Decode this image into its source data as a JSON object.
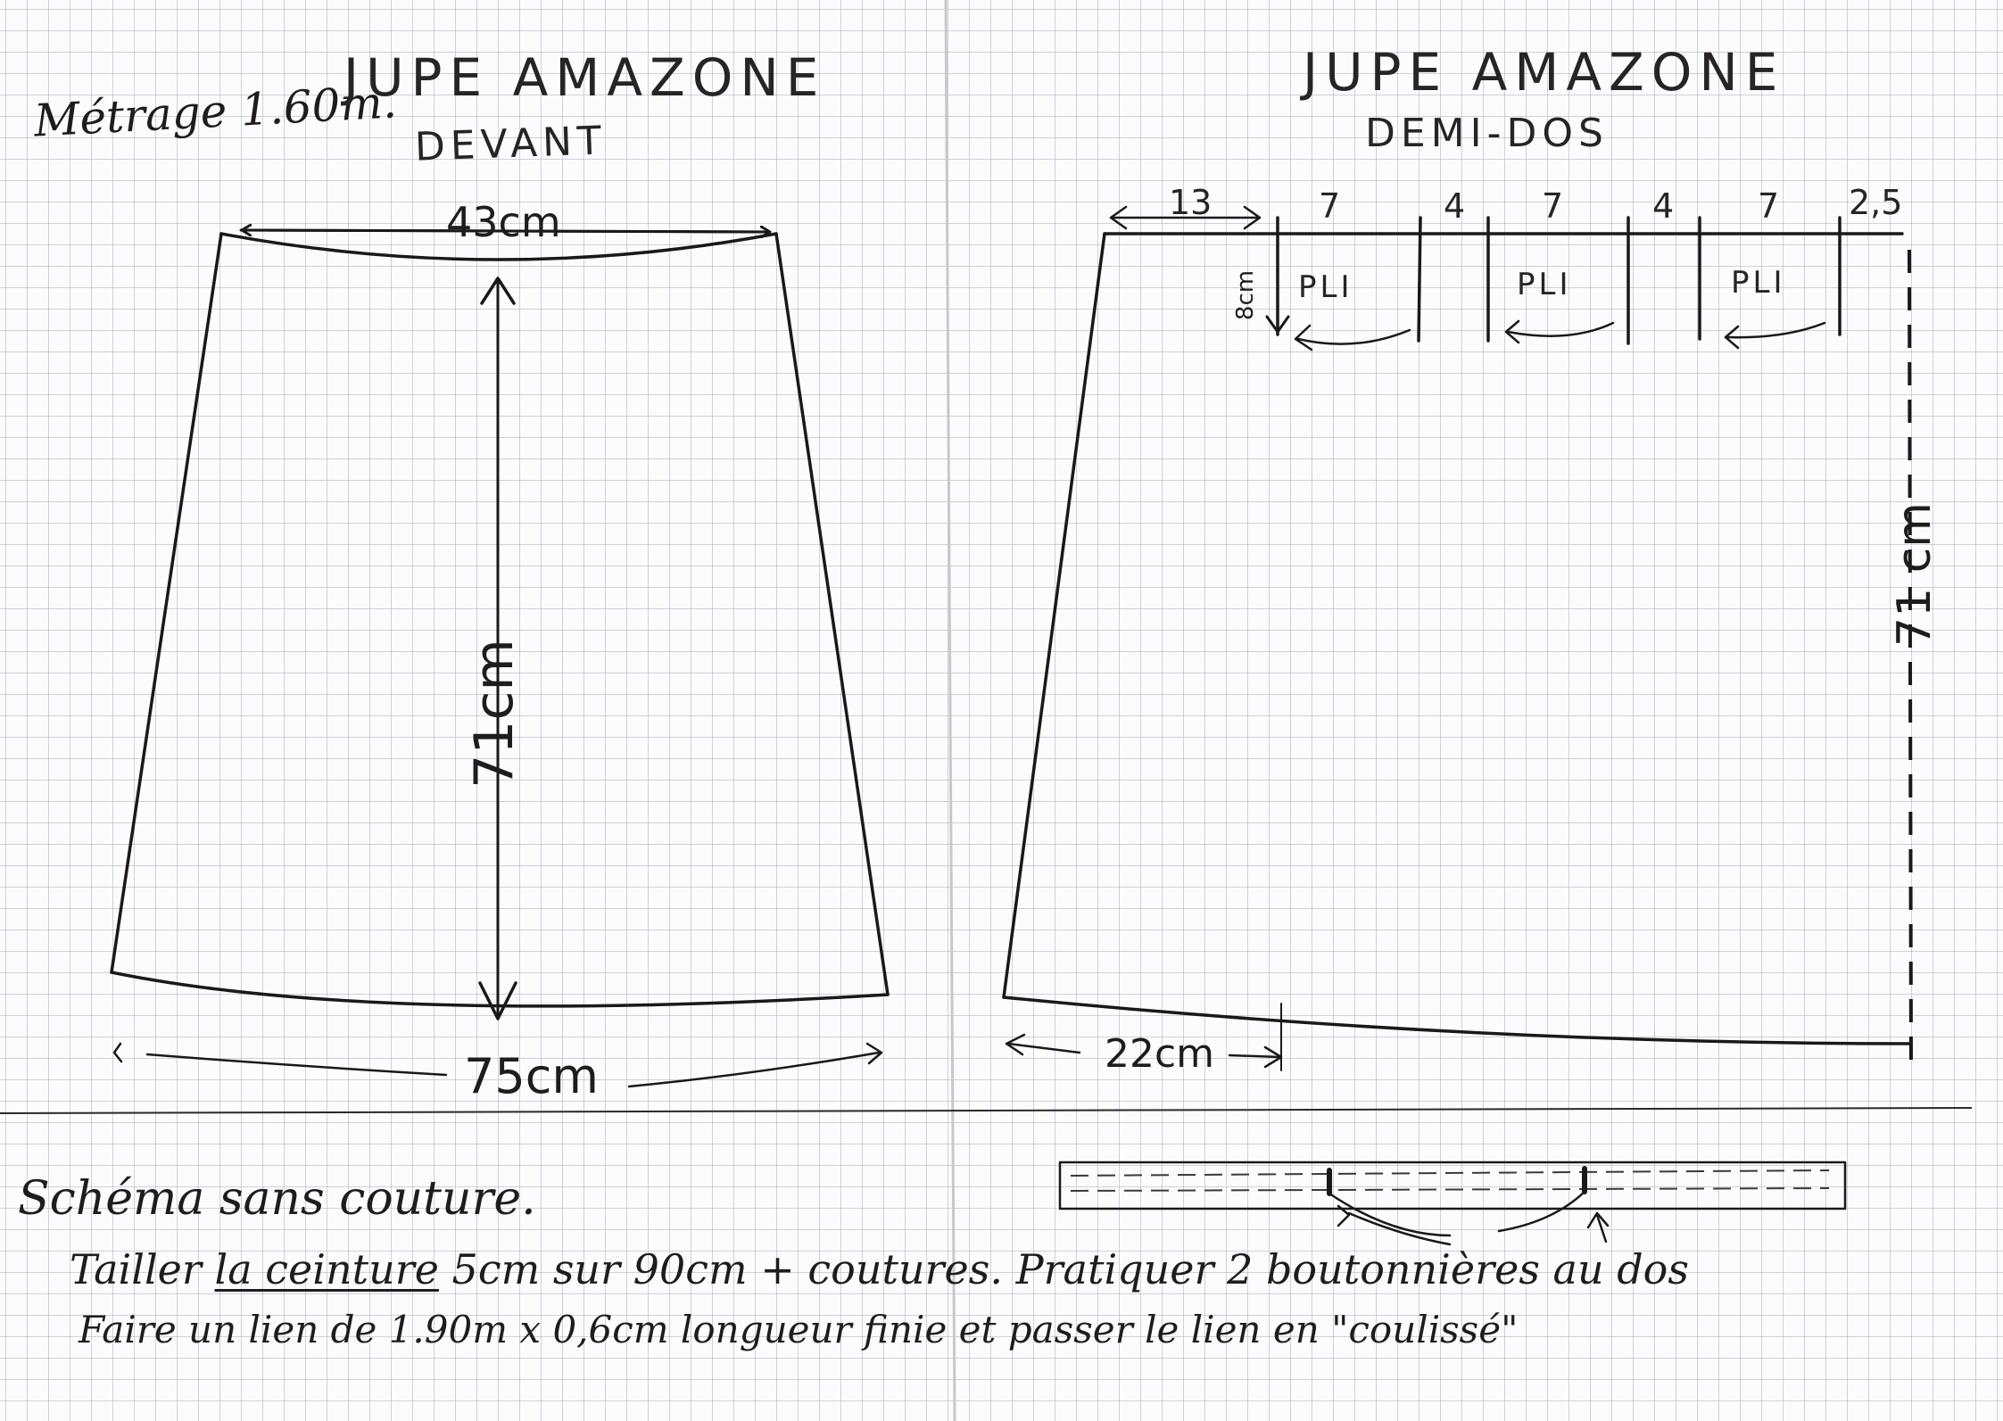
{
  "front_panel": {
    "title": "JUPE AMAZONE",
    "subtitle": "DEVANT",
    "fabric_note": "Métrage 1.60m.",
    "waist_width": "43cm",
    "length": "71cm",
    "hem_width": "75cm"
  },
  "back_panel": {
    "title": "JUPE AMAZONE",
    "subtitle": "DEMI-DOS",
    "waist_segments": [
      "13",
      "7",
      "4",
      "7",
      "4",
      "7",
      "2,5"
    ],
    "pleat_depth": "8cm",
    "pleat_labels": [
      "PLI",
      "PLI",
      "PLI"
    ],
    "length": "71 cm",
    "hem_offset": "22cm"
  },
  "instructions": {
    "line1": "Schéma sans couture.",
    "line2_prefix": "Tailler",
    "line2_underlined": "la ceinture",
    "line2_rest": "5cm sur 90cm + coutures. Pratiquer 2 boutonnières au dos",
    "line3": "Faire un lien de 1.90m x 0,6cm longueur finie et passer le lien en \"coulissé\""
  },
  "colors": {
    "ink": "#1a1818",
    "grid": "#96a0b9",
    "paper": "#fcfcfd"
  }
}
